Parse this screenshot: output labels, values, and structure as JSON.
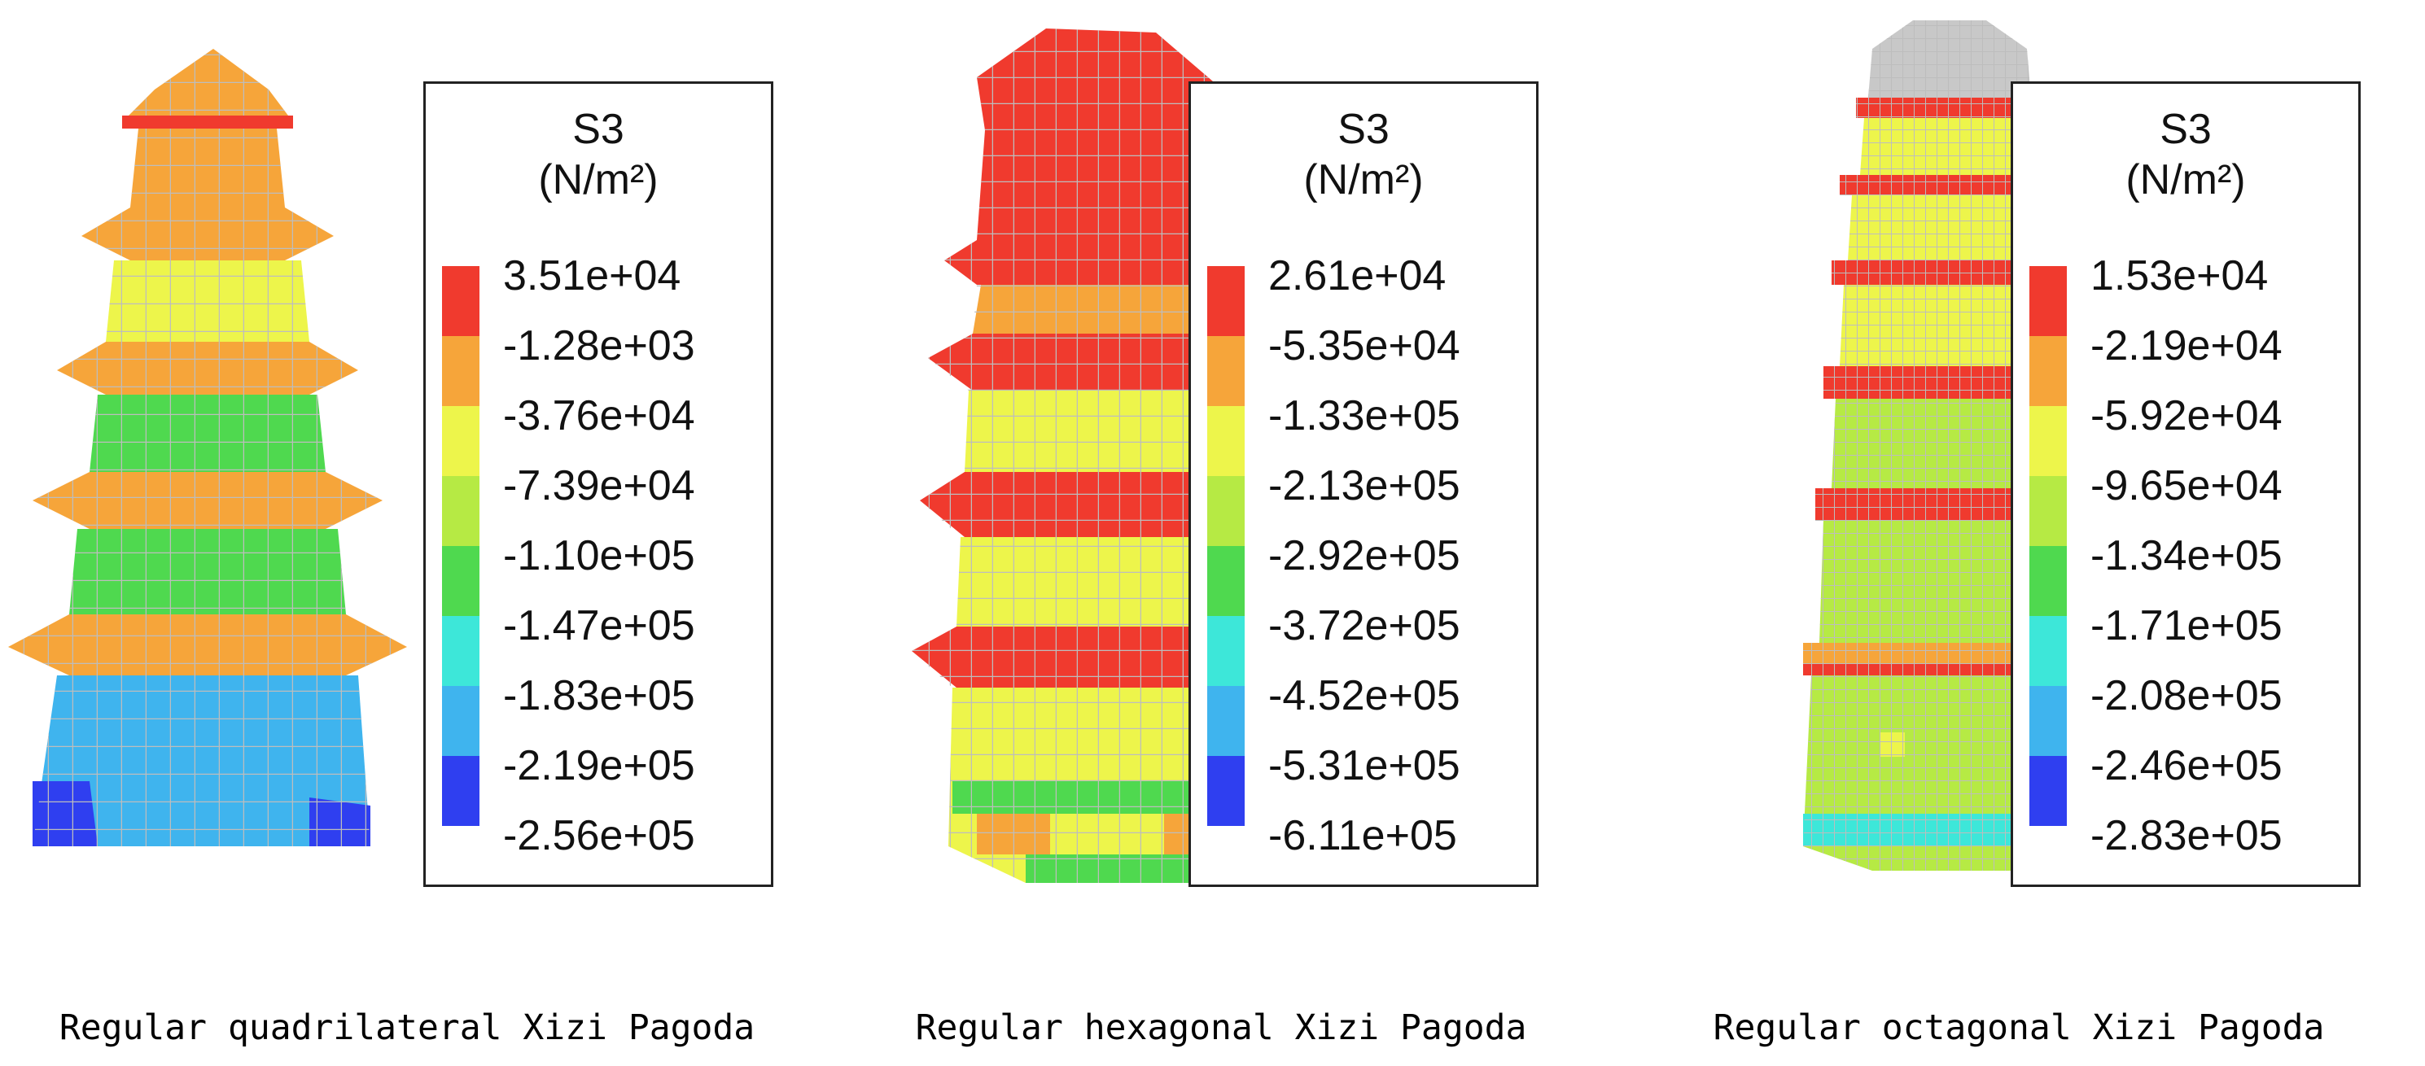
{
  "colors": {
    "red": "#f03a2e",
    "orange": "#f6a53a",
    "yellow": "#edf54b",
    "yellowgreen": "#b6ea44",
    "green": "#4fd94f",
    "lightgreen": "#3be07a",
    "cyan": "#3de7d9",
    "lightblue": "#3fb4ee",
    "blue": "#2f3ff0",
    "grid": "#bdbdbd",
    "cap": "#c8c8c8"
  },
  "panels": [
    {
      "caption": "Regular quadrilateral Xizi Pagoda",
      "legend": {
        "quantity": "S3",
        "unit": "(N/m²)",
        "values": [
          "3.51e+04",
          "-1.28e+03",
          "-3.76e+04",
          "-7.39e+04",
          "-1.10e+05",
          "-1.47e+05",
          "-1.83e+05",
          "-2.19e+05",
          "-2.56e+05"
        ]
      }
    },
    {
      "caption": "Regular hexagonal Xizi Pagoda",
      "legend": {
        "quantity": "S3",
        "unit": "(N/m²)",
        "values": [
          "2.61e+04",
          "-5.35e+04",
          "-1.33e+05",
          "-2.13e+05",
          "-2.92e+05",
          "-3.72e+05",
          "-4.52e+05",
          "-5.31e+05",
          "-6.11e+05"
        ]
      }
    },
    {
      "caption": "Regular octagonal Xizi Pagoda",
      "legend": {
        "quantity": "S3",
        "unit": "(N/m²)",
        "values": [
          "1.53e+04",
          "-2.19e+04",
          "-5.92e+04",
          "-9.65e+04",
          "-1.34e+05",
          "-1.71e+05",
          "-2.08e+05",
          "-2.46e+05",
          "-2.83e+05"
        ]
      }
    }
  ]
}
